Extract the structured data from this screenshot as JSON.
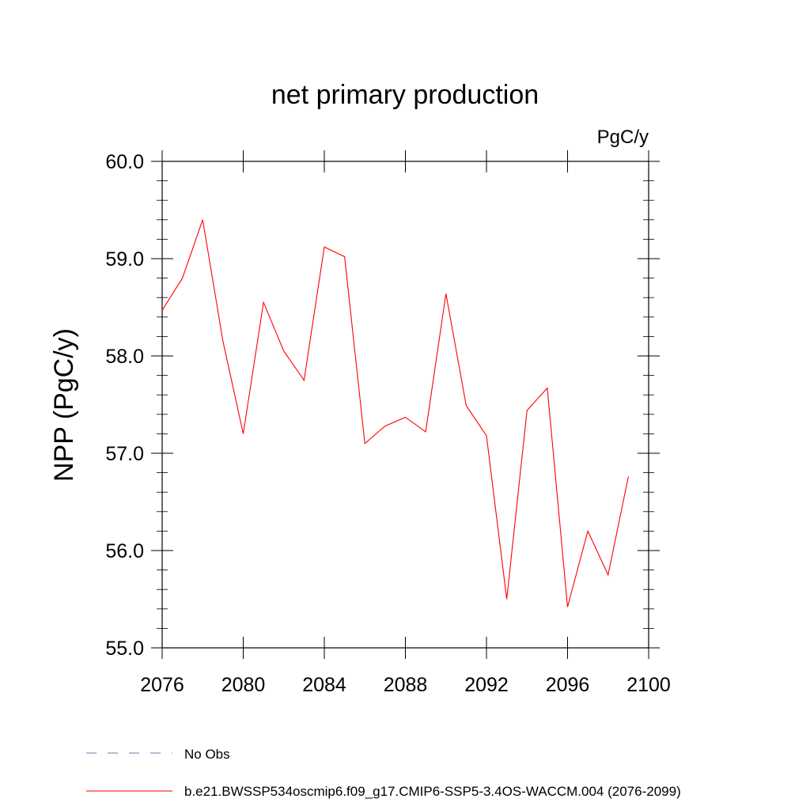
{
  "chart_data": {
    "type": "line",
    "title": "net primary production",
    "units_label": "PgC/y",
    "ylabel": "NPP  (PgC/y)",
    "xlabel": "",
    "xlim": [
      2076,
      2100
    ],
    "ylim": [
      55.0,
      60.0
    ],
    "x_ticks": [
      "2076",
      "2080",
      "2084",
      "2088",
      "2092",
      "2096",
      "2100"
    ],
    "y_ticks": [
      "55.0",
      "56.0",
      "57.0",
      "58.0",
      "59.0",
      "60.0"
    ],
    "grid": false,
    "series": [
      {
        "name": "b.e21.BWSSP534oscmip6.f09_g17.CMIP6-SSP5-3.4OS-WACCM.004 (2076-2099)",
        "color": "#ff0000",
        "x": [
          2076,
          2077,
          2078,
          2079,
          2080,
          2081,
          2082,
          2083,
          2084,
          2085,
          2086,
          2087,
          2088,
          2089,
          2090,
          2091,
          2092,
          2093,
          2094,
          2095,
          2096,
          2097,
          2098,
          2099
        ],
        "values": [
          58.47,
          58.8,
          59.4,
          58.15,
          57.2,
          58.55,
          58.05,
          57.75,
          59.12,
          59.02,
          57.1,
          57.28,
          57.37,
          57.22,
          58.64,
          57.49,
          57.18,
          55.5,
          57.44,
          57.67,
          55.42,
          56.2,
          55.75,
          56.76
        ]
      }
    ],
    "legend": {
      "placement": "bottom-left",
      "entries": [
        {
          "label": "No Obs",
          "style": "dashed",
          "color": "#7b6fb0"
        },
        {
          "label": "b.e21.BWSSP534oscmip6.f09_g17.CMIP6-SSP5-3.4OS-WACCM.004 (2076-2099)",
          "style": "solid",
          "color": "#ff0000"
        }
      ]
    }
  }
}
